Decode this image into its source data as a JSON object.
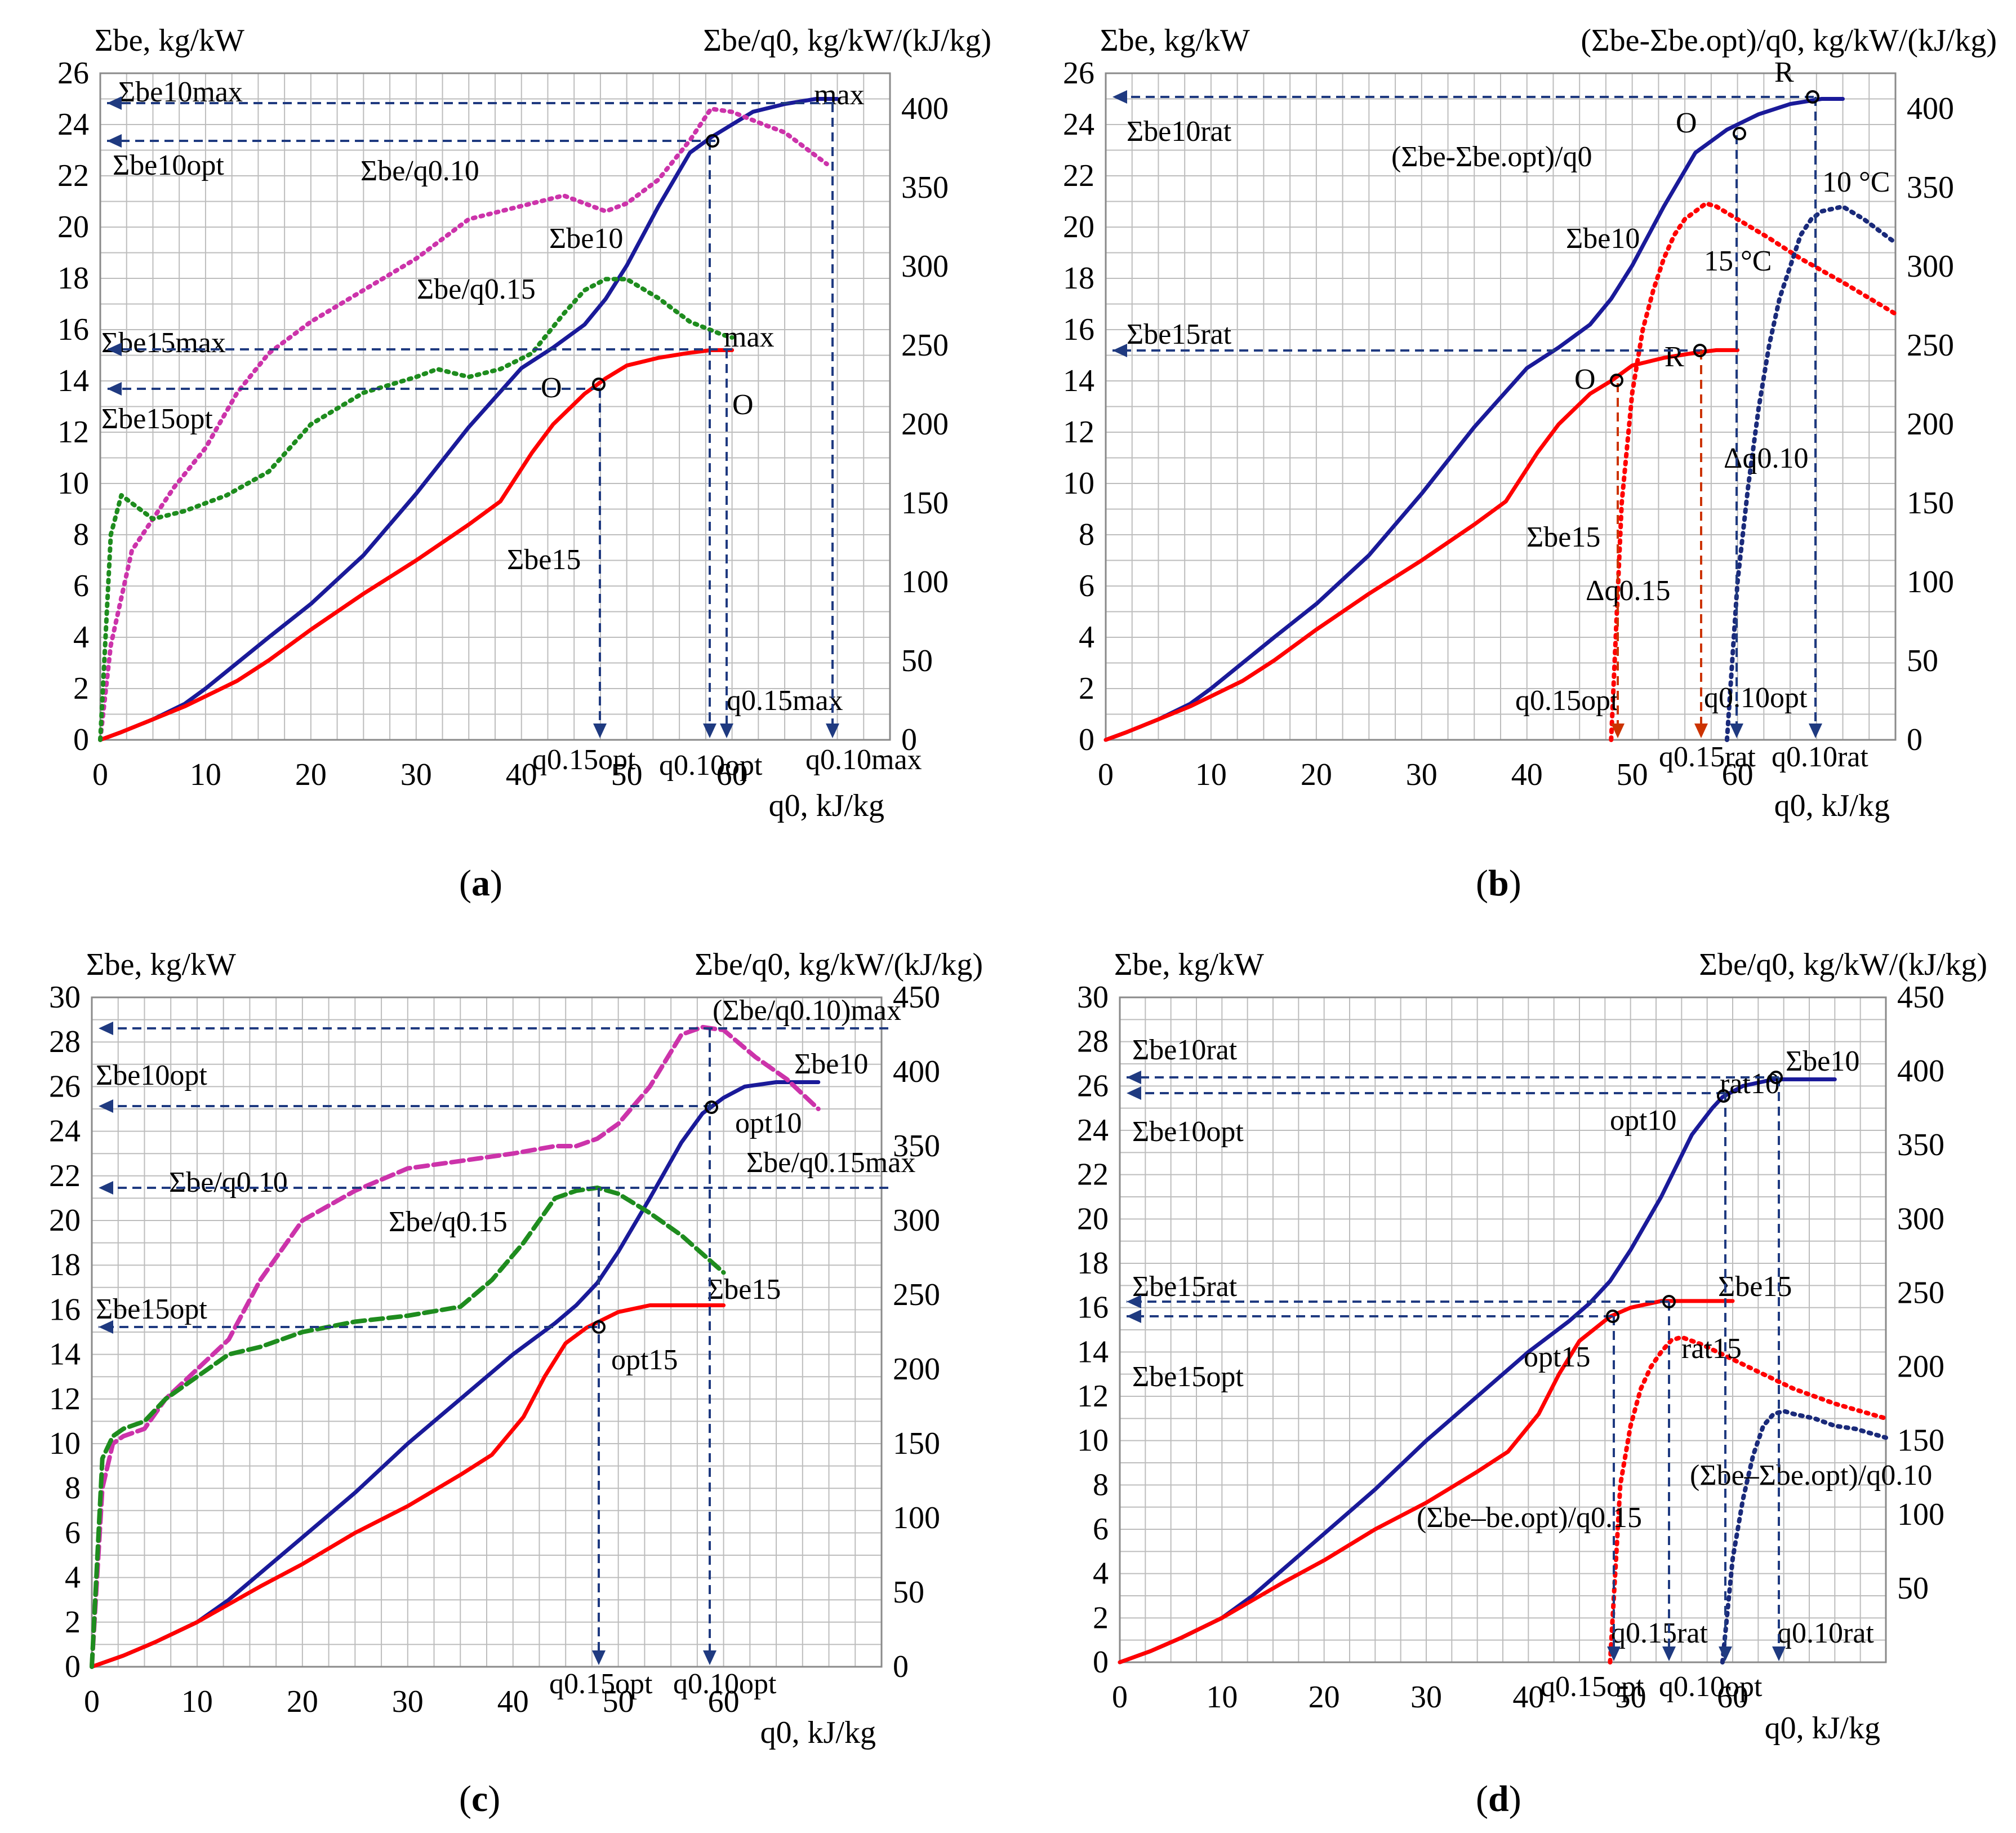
{
  "figure": {
    "panel_labels": [
      "(a)",
      "(b)",
      "(c)",
      "(d)"
    ]
  },
  "chart_data": [
    {
      "id": "a",
      "type": "line",
      "label": "(a)",
      "x_axis": {
        "label": "q0, kJ/kg",
        "range": [
          0,
          75
        ],
        "ticks": [
          0,
          10,
          20,
          30,
          40,
          50,
          60
        ]
      },
      "y_left": {
        "label": "Σbe, kg/kW",
        "range": [
          0,
          26
        ],
        "ticks": [
          0,
          2,
          4,
          6,
          8,
          10,
          12,
          14,
          16,
          18,
          20,
          22,
          24,
          26
        ]
      },
      "y_right": {
        "label": "Σbe/q0, kg/kW/(kJ/kg)",
        "range": [
          0,
          422.5
        ],
        "ticks": [
          0,
          50,
          100,
          150,
          200,
          250,
          300,
          350,
          400
        ]
      },
      "grid": true,
      "series": [
        {
          "name": "Σbe10",
          "axis": "left",
          "color": "#1a1a99",
          "style": "solid",
          "x": [
            0,
            2,
            5,
            8,
            10,
            13,
            16,
            20,
            25,
            30,
            35,
            40,
            43,
            46,
            48,
            50,
            53,
            56,
            58,
            60,
            62,
            65,
            68,
            70
          ],
          "y": [
            0,
            0.3,
            0.8,
            1.4,
            2.0,
            3.0,
            4.0,
            5.3,
            7.2,
            9.6,
            12.2,
            14.5,
            15.3,
            16.2,
            17.2,
            18.5,
            20.8,
            22.9,
            23.5,
            24.0,
            24.5,
            24.8,
            25.0,
            25.0
          ]
        },
        {
          "name": "Σbe15",
          "axis": "left",
          "color": "#ff0000",
          "style": "solid",
          "x": [
            0,
            2,
            5,
            8,
            10,
            13,
            16,
            20,
            25,
            30,
            35,
            38,
            41,
            43,
            46,
            48,
            50,
            53,
            56,
            58,
            60
          ],
          "y": [
            0,
            0.3,
            0.8,
            1.3,
            1.7,
            2.3,
            3.1,
            4.3,
            5.7,
            7.0,
            8.4,
            9.3,
            11.2,
            12.3,
            13.5,
            14.1,
            14.6,
            14.9,
            15.1,
            15.2,
            15.2
          ]
        },
        {
          "name": "Σbe/q0.10",
          "axis": "right",
          "color": "#cc33aa",
          "style": "dotted",
          "x": [
            0,
            1,
            3,
            5,
            7,
            10,
            13,
            16,
            20,
            25,
            30,
            35,
            38,
            41,
            44,
            46,
            48,
            50,
            53,
            56,
            58,
            60,
            63,
            65,
            69
          ],
          "y": [
            0,
            60,
            120,
            140,
            160,
            185,
            220,
            245,
            265,
            285,
            305,
            330,
            335,
            340,
            345,
            340,
            335,
            340,
            355,
            380,
            400,
            398,
            390,
            385,
            365
          ]
        },
        {
          "name": "Σbe/q0.15",
          "axis": "right",
          "color": "#1e8c1e",
          "style": "dotted",
          "x": [
            0,
            1,
            2,
            3,
            5,
            8,
            12,
            16,
            20,
            25,
            30,
            32,
            35,
            38,
            41,
            44,
            46,
            48,
            50,
            53,
            56,
            59,
            60
          ],
          "y": [
            0,
            130,
            155,
            150,
            140,
            145,
            155,
            170,
            200,
            220,
            230,
            235,
            230,
            235,
            245,
            270,
            285,
            292,
            292,
            280,
            265,
            257,
            255
          ]
        }
      ],
      "annotations": [
        "Σbe10max",
        "Σbe10opt",
        "Σbe15max",
        "Σbe15opt",
        "max",
        "max",
        "O",
        "O",
        "Σbe/q0.10",
        "Σbe10",
        "Σbe/q0.15",
        "Σbe15",
        "q0.15opt",
        "q0.10opt",
        "q0.15max",
        "q0.10max"
      ]
    },
    {
      "id": "b",
      "type": "line",
      "label": "(b)",
      "x_axis": {
        "label": "q0, kJ/kg",
        "range": [
          0,
          75
        ],
        "ticks": [
          0,
          10,
          20,
          30,
          40,
          50,
          60
        ]
      },
      "y_left": {
        "label": "Σbe, kg/kW",
        "range": [
          0,
          26
        ],
        "ticks": [
          0,
          2,
          4,
          6,
          8,
          10,
          12,
          14,
          16,
          18,
          20,
          22,
          24,
          26
        ]
      },
      "y_right": {
        "label": "(Σbe-Σbe.opt)/q0, kg/kW/(kJ/kg)",
        "range": [
          0,
          422.5
        ],
        "ticks": [
          0,
          50,
          100,
          150,
          200,
          250,
          300,
          350,
          400
        ]
      },
      "grid": true,
      "series": [
        {
          "name": "Σbe10",
          "axis": "left",
          "color": "#1a1a99",
          "style": "solid",
          "x": [
            0,
            2,
            5,
            8,
            10,
            13,
            16,
            20,
            25,
            30,
            35,
            40,
            43,
            46,
            48,
            50,
            53,
            56,
            59,
            62,
            65,
            68,
            70
          ],
          "y": [
            0,
            0.3,
            0.8,
            1.4,
            2.0,
            3.0,
            4.0,
            5.3,
            7.2,
            9.6,
            12.2,
            14.5,
            15.3,
            16.2,
            17.2,
            18.5,
            20.8,
            22.9,
            23.8,
            24.4,
            24.8,
            25.0,
            25.0
          ]
        },
        {
          "name": "Σbe15",
          "axis": "left",
          "color": "#ff0000",
          "style": "solid",
          "x": [
            0,
            2,
            5,
            8,
            10,
            13,
            16,
            20,
            25,
            30,
            35,
            38,
            41,
            43,
            46,
            48,
            50,
            53,
            56,
            58,
            60
          ],
          "y": [
            0,
            0.3,
            0.8,
            1.3,
            1.7,
            2.3,
            3.1,
            4.3,
            5.7,
            7.0,
            8.4,
            9.3,
            11.2,
            12.3,
            13.5,
            14.0,
            14.6,
            14.9,
            15.1,
            15.2,
            15.2
          ]
        },
        {
          "name": "(Σbe-Σbe.opt)/q0 15 °C",
          "axis": "right",
          "color": "#ff0000",
          "style": "dotted",
          "x": [
            48,
            49,
            50,
            51,
            52,
            53,
            54,
            55,
            56,
            57,
            58,
            60,
            63,
            66,
            70,
            75
          ],
          "y": [
            0,
            150,
            220,
            260,
            285,
            305,
            320,
            330,
            335,
            340,
            338,
            330,
            318,
            305,
            290,
            270
          ]
        },
        {
          "name": "(Σbe-Σbe.opt)/q0 10 °C",
          "axis": "right",
          "color": "#1a2a7a",
          "style": "dotted",
          "x": [
            59,
            60,
            61,
            62,
            63,
            64,
            65,
            66,
            67,
            68,
            70,
            72,
            75
          ],
          "y": [
            0,
            100,
            160,
            210,
            250,
            280,
            300,
            320,
            330,
            335,
            338,
            330,
            315
          ]
        }
      ],
      "annotations": [
        "Σbe10rat",
        "Σbe15rat",
        "R",
        "R",
        "O",
        "O",
        "(Σbe-Σbe.opt)/q0",
        "Σbe10",
        "Σbe15",
        "10 °C",
        "15 °C",
        "Δq0.10",
        "Δq0.15",
        "q0.15opt",
        "q0.15rat",
        "q0.10opt",
        "q0.10rat"
      ]
    },
    {
      "id": "c",
      "type": "line",
      "label": "(c)",
      "x_axis": {
        "label": "q0, kJ/kg",
        "range": [
          0,
          75
        ],
        "ticks": [
          0,
          10,
          20,
          30,
          40,
          50,
          60
        ]
      },
      "y_left": {
        "label": "Σbe, kg/kW",
        "range": [
          0,
          30
        ],
        "ticks": [
          0,
          2,
          4,
          6,
          8,
          10,
          12,
          14,
          16,
          18,
          20,
          22,
          24,
          26,
          28,
          30
        ]
      },
      "y_right": {
        "label": "Σbe/q0, kg/kW/(kJ/kg)",
        "range": [
          0,
          450
        ],
        "ticks": [
          0,
          50,
          100,
          150,
          200,
          250,
          300,
          350,
          400,
          450
        ]
      },
      "grid": true,
      "series": [
        {
          "name": "Σbe10",
          "axis": "left",
          "color": "#1a1a99",
          "style": "solid",
          "x": [
            0,
            3,
            6,
            10,
            13,
            16,
            20,
            25,
            30,
            35,
            40,
            44,
            46,
            48,
            50,
            53,
            56,
            58,
            60,
            62,
            65,
            69
          ],
          "y": [
            0,
            0.5,
            1.1,
            2.0,
            3.0,
            4.2,
            5.8,
            7.8,
            10.0,
            12.0,
            14.0,
            15.4,
            16.2,
            17.2,
            18.6,
            21.0,
            23.5,
            24.8,
            25.5,
            26.0,
            26.2,
            26.2
          ]
        },
        {
          "name": "Σbe15",
          "axis": "left",
          "color": "#ff0000",
          "style": "solid",
          "x": [
            0,
            3,
            6,
            10,
            13,
            16,
            20,
            25,
            30,
            35,
            38,
            41,
            43,
            45,
            47,
            50,
            53,
            56,
            60
          ],
          "y": [
            0,
            0.5,
            1.1,
            2.0,
            2.8,
            3.6,
            4.6,
            6.0,
            7.2,
            8.6,
            9.5,
            11.2,
            13.0,
            14.5,
            15.2,
            15.9,
            16.2,
            16.2,
            16.2
          ]
        },
        {
          "name": "Σbe/q0.10",
          "axis": "right",
          "color": "#cc33aa",
          "style": "dashed",
          "x": [
            0,
            1,
            2,
            3,
            5,
            7,
            10,
            13,
            16,
            20,
            25,
            30,
            35,
            40,
            44,
            46,
            48,
            50,
            53,
            56,
            58,
            60,
            63,
            66,
            69
          ],
          "y": [
            0,
            120,
            150,
            155,
            160,
            180,
            200,
            220,
            260,
            300,
            320,
            335,
            340,
            345,
            350,
            350,
            355,
            365,
            390,
            425,
            430,
            428,
            410,
            395,
            375
          ]
        },
        {
          "name": "Σbe/q0.15",
          "axis": "right",
          "color": "#1e8c1e",
          "style": "dashed",
          "x": [
            0,
            1,
            2,
            3,
            5,
            7,
            10,
            13,
            16,
            20,
            25,
            30,
            35,
            38,
            41,
            44,
            46,
            48,
            50,
            53,
            56,
            60
          ],
          "y": [
            0,
            140,
            155,
            160,
            165,
            180,
            195,
            210,
            215,
            225,
            232,
            236,
            242,
            260,
            285,
            315,
            320,
            322,
            318,
            305,
            290,
            265
          ]
        }
      ],
      "annotations": [
        "(Σbe/q0.10)max",
        "Σbe10opt",
        "Σbe10",
        "opt10",
        "Σbe/q0.15max",
        "Σbe/q0.10",
        "Σbe/q0.15",
        "Σbe15opt",
        "Σbe15",
        "opt15",
        "q0.15opt",
        "q0.10opt"
      ]
    },
    {
      "id": "d",
      "type": "line",
      "label": "(d)",
      "x_axis": {
        "label": "q0, kJ/kg",
        "range": [
          0,
          75
        ],
        "ticks": [
          0,
          10,
          20,
          30,
          40,
          50,
          60
        ]
      },
      "y_left": {
        "label": "Σbe, kg/kW",
        "range": [
          0,
          30
        ],
        "ticks": [
          0,
          2,
          4,
          6,
          8,
          10,
          12,
          14,
          16,
          18,
          20,
          22,
          24,
          26,
          28,
          30
        ]
      },
      "y_right": {
        "label": "Σbe/q0, kg/kW/(kJ/kg)",
        "range": [
          0,
          450
        ],
        "ticks": [
          50,
          100,
          150,
          200,
          250,
          300,
          350,
          400,
          450
        ]
      },
      "grid": true,
      "series": [
        {
          "name": "Σbe10",
          "axis": "left",
          "color": "#1a1a99",
          "style": "solid",
          "x": [
            0,
            3,
            6,
            10,
            13,
            16,
            20,
            25,
            30,
            35,
            40,
            44,
            46,
            48,
            50,
            53,
            56,
            58,
            59,
            61,
            64,
            66,
            70
          ],
          "y": [
            0,
            0.5,
            1.1,
            2.0,
            3.0,
            4.2,
            5.8,
            7.8,
            10.0,
            12.0,
            14.0,
            15.4,
            16.2,
            17.2,
            18.6,
            21.0,
            23.8,
            25.0,
            25.5,
            26.0,
            26.3,
            26.3,
            26.3
          ]
        },
        {
          "name": "Σbe15",
          "axis": "left",
          "color": "#ff0000",
          "style": "solid",
          "x": [
            0,
            3,
            6,
            10,
            13,
            16,
            20,
            25,
            30,
            35,
            38,
            41,
            43,
            45,
            48,
            50,
            53,
            56,
            60
          ],
          "y": [
            0,
            0.5,
            1.1,
            2.0,
            2.8,
            3.6,
            4.6,
            6.0,
            7.2,
            8.6,
            9.5,
            11.2,
            13.0,
            14.5,
            15.6,
            16.0,
            16.3,
            16.3,
            16.3
          ]
        },
        {
          "name": "(Σbe-be.opt)/q0.15",
          "axis": "right",
          "color": "#ff0000",
          "style": "dotted",
          "x": [
            48,
            49,
            50,
            51,
            52,
            53,
            54,
            55,
            57,
            60,
            63,
            66,
            70,
            75
          ],
          "y": [
            0,
            120,
            160,
            185,
            200,
            210,
            218,
            220,
            215,
            205,
            195,
            185,
            175,
            165
          ]
        },
        {
          "name": "(Σbe-Σbe.opt)/q0.10",
          "axis": "right",
          "color": "#1a2a7a",
          "style": "dotted",
          "x": [
            59,
            60,
            61,
            62,
            63,
            64,
            65,
            66,
            68,
            70,
            72,
            75
          ],
          "y": [
            0,
            70,
            110,
            140,
            160,
            168,
            170,
            168,
            165,
            160,
            158,
            152
          ]
        }
      ],
      "annotations": [
        "Σbe10rat",
        "Σbe10opt",
        "Σbe10",
        "rat10",
        "opt10",
        "Σbe15rat",
        "Σbe15opt",
        "Σbe15",
        "rat15",
        "opt15",
        "(Σbe–be.opt)/q0.15",
        "(Σbe–Σbe.opt)/q0.10",
        "q0.15rat",
        "q0.10rat",
        "q0.15opt",
        "q0.10opt"
      ]
    }
  ]
}
